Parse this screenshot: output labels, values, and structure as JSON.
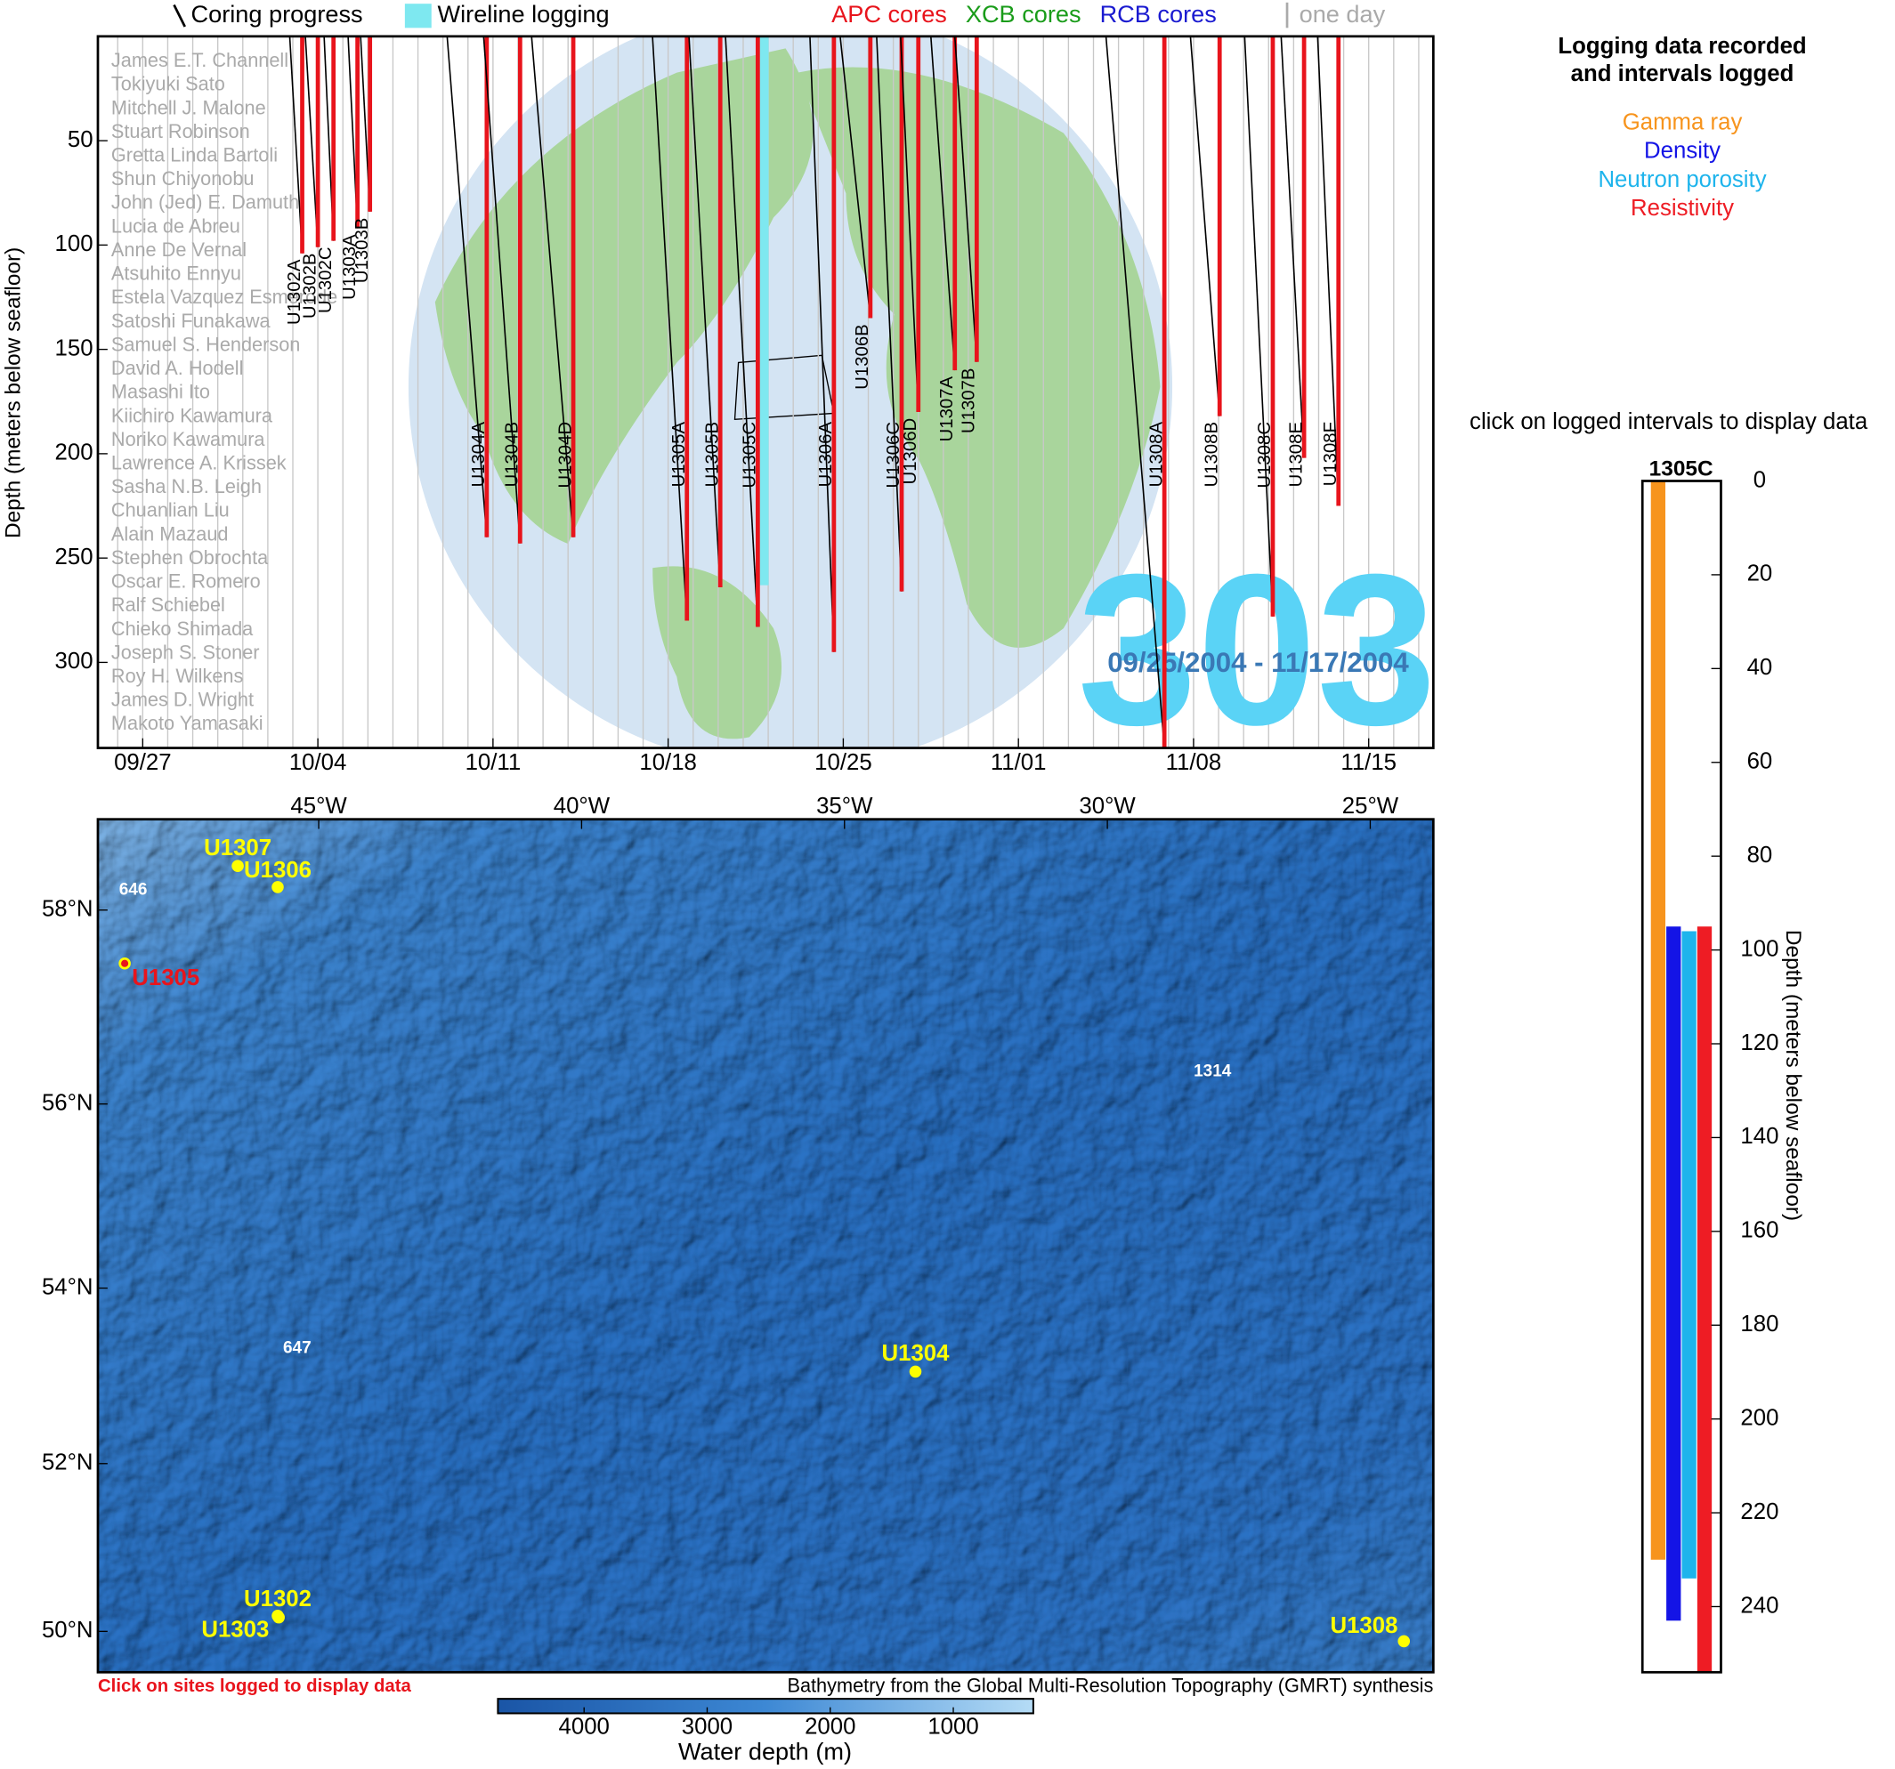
{
  "legend": {
    "coring": "Coring progress",
    "wireline": "Wireline logging",
    "core_types": [
      {
        "name": "APC cores",
        "color": "#e8141c"
      },
      {
        "name": "XCB cores",
        "color": "#1a9c1a"
      },
      {
        "name": "RCB cores",
        "color": "#1a1ad0"
      }
    ],
    "one_day": "one day"
  },
  "timeline": {
    "type": "timeline",
    "ylabel": "Depth (meters below seafloor)",
    "xlim": [
      "2004-09-25T05:00",
      "2004-11-17T14:00"
    ],
    "xticks": [
      {
        "value": "2004-09-27T00:00",
        "label": "09/27"
      },
      {
        "value": "2004-10-04T00:00",
        "label": "10/04"
      },
      {
        "value": "2004-10-11T00:00",
        "label": "10/11"
      },
      {
        "value": "2004-10-18T00:00",
        "label": "10/18"
      },
      {
        "value": "2004-10-25T00:00",
        "label": "10/25"
      },
      {
        "value": "2004-11-01T00:00",
        "label": "11/01"
      },
      {
        "value": "2004-11-08T00:00",
        "label": "11/08"
      },
      {
        "value": "2004-11-15T00:00",
        "label": "11/15"
      }
    ],
    "ylim": [
      0,
      341
    ],
    "yticks": [
      50,
      100,
      150,
      200,
      250,
      300
    ],
    "y_reversed": true,
    "expedition": "303",
    "date_range": "09/25/2004 - 11/17/2004",
    "crew": [
      "James E.T. Channell",
      "Tokiyuki Sato",
      "Mitchell J. Malone",
      "Stuart Robinson",
      "Gretta Linda Bartoli",
      "Shun Chiyonobu",
      "John (Jed) E. Damuth",
      "Lucia de Abreu",
      "Anne De Vernal",
      "Atsuhito Ennyu",
      "Estela Vazquez Esmerode",
      "Satoshi Funakawa",
      "Samuel S. Henderson",
      "David A. Hodell",
      "Masashi Ito",
      "Kiichiro Kawamura",
      "Noriko Kawamura",
      "Lawrence A. Krissek",
      "Sasha N.B. Leigh",
      "Chuanlian Liu",
      "Alain Mazaud",
      "Stephen Obrochta",
      "Oscar E. Romero",
      "Ralf Schiebel",
      "Chieko Shimada",
      "Joseph S. Stoner",
      "Roy H. Wilkens",
      "James D. Wright",
      "Makoto Yamasaki"
    ],
    "holes": [
      {
        "name": "U1302A",
        "start": "2004-10-02T21:00",
        "end": "2004-10-03T09:00",
        "depth": 104,
        "core": 0
      },
      {
        "name": "U1302B",
        "start": "2004-10-03T12:00",
        "end": "2004-10-04T00:00",
        "depth": 101,
        "core": 0
      },
      {
        "name": "U1302C",
        "start": "2004-10-04T06:00",
        "end": "2004-10-04T15:00",
        "depth": 98,
        "core": 0
      },
      {
        "name": "U1303A",
        "start": "2004-10-05T05:00",
        "end": "2004-10-05T14:00",
        "depth": 92,
        "core": 0
      },
      {
        "name": "U1303B",
        "start": "2004-10-05T17:00",
        "end": "2004-10-06T02:00",
        "depth": 84,
        "core": 0
      },
      {
        "name": "U1304A",
        "start": "2004-10-09T04:00",
        "end": "2004-10-10T18:00",
        "depth": 240,
        "core": 0
      },
      {
        "name": "U1304B",
        "start": "2004-10-10T15:00",
        "end": "2004-10-12T02:00",
        "depth": 243,
        "core": 0
      },
      {
        "name": "U1304D",
        "start": "2004-10-12T13:00",
        "end": "2004-10-14T05:00",
        "depth": 240,
        "core": 0
      },
      {
        "name": "U1305A",
        "start": "2004-10-17T09:00",
        "end": "2004-10-18T18:00",
        "depth": 280,
        "core": 0
      },
      {
        "name": "U1305B",
        "start": "2004-10-18T20:00",
        "end": "2004-10-20T02:00",
        "depth": 264,
        "core": 0
      },
      {
        "name": "U1305C",
        "start": "2004-10-20T07:00",
        "end": "2004-10-21T14:00",
        "depth": 283,
        "core": 0
      },
      {
        "name": "U1306A",
        "start": "2004-10-23T16:00",
        "end": "2004-10-24T15:00",
        "depth": 295,
        "core": 0
      },
      {
        "name": "U1306B",
        "start": "2004-10-24T21:00",
        "end": "2004-10-26T02:00",
        "depth": 135,
        "core": 0
      },
      {
        "name": "U1306C",
        "start": "2004-10-26T08:00",
        "end": "2004-10-27T08:00",
        "depth": 266,
        "core": 0
      },
      {
        "name": "U1306D",
        "start": "2004-10-27T07:00",
        "end": "2004-10-28T00:00",
        "depth": 180,
        "core": 0
      },
      {
        "name": "U1307A",
        "start": "2004-10-28T12:00",
        "end": "2004-10-29T11:00",
        "depth": 160,
        "core": 0
      },
      {
        "name": "U1307B",
        "start": "2004-10-29T11:00",
        "end": "2004-10-30T08:00",
        "depth": 156,
        "core": 0
      },
      {
        "name": "U1308A",
        "start": "2004-11-04T12:00",
        "end": "2004-11-06T20:00",
        "depth": 341,
        "core": 0
      },
      {
        "name": "U1308B",
        "start": "2004-11-07T21:00",
        "end": "2004-11-09T01:00",
        "depth": 182,
        "core": 0
      },
      {
        "name": "U1308C",
        "start": "2004-11-10T01:00",
        "end": "2004-11-11T04:00",
        "depth": 278,
        "core": 0
      },
      {
        "name": "U1308E",
        "start": "2004-11-11T12:00",
        "end": "2004-11-12T10:00",
        "depth": 202,
        "core": 0
      },
      {
        "name": "U1308F",
        "start": "2004-11-12T23:00",
        "end": "2004-11-13T19:00",
        "depth": 225,
        "core": 0
      }
    ],
    "logging": [
      {
        "hole": "U1305C",
        "top": 0,
        "bottom": 263,
        "color": "#7ee8f0"
      }
    ]
  },
  "logging_panel": {
    "title": [
      "Logging data recorded",
      "and intervals logged"
    ],
    "instruction": "click on logged intervals to display data",
    "hole": "1305C",
    "ylabel": "Depth (meters below seafloor)",
    "ylim": [
      0,
      254
    ],
    "yticks": [
      0,
      20,
      40,
      60,
      80,
      100,
      120,
      140,
      160,
      180,
      200,
      220,
      240
    ],
    "y_reversed": true,
    "series": [
      {
        "name": "Gamma ray",
        "color": "#f7941d",
        "top": 0,
        "bottom": 230
      },
      {
        "name": "Density",
        "color": "#1414e6",
        "top": 95,
        "bottom": 243
      },
      {
        "name": "Neutron porosity",
        "color": "#1eb4ec",
        "top": 96,
        "bottom": 234
      },
      {
        "name": "Resistivity",
        "color": "#ee1c24",
        "top": 95,
        "bottom": 254
      }
    ]
  },
  "map": {
    "type": "map",
    "projection": "mercator",
    "xlim": [
      -49.2,
      -23.8
    ],
    "ylim": [
      49.5,
      58.9
    ],
    "xticks": [
      {
        "value": -45,
        "label": "45°W"
      },
      {
        "value": -40,
        "label": "40°W"
      },
      {
        "value": -35,
        "label": "35°W"
      },
      {
        "value": -30,
        "label": "30°W"
      },
      {
        "value": -25,
        "label": "25°W"
      }
    ],
    "yticks": [
      {
        "value": 50,
        "label": "50°N"
      },
      {
        "value": 52,
        "label": "52°N"
      },
      {
        "value": 54,
        "label": "54°N"
      },
      {
        "value": 56,
        "label": "56°N"
      },
      {
        "value": 58,
        "label": "58°N"
      }
    ],
    "site_color": "#ffff00",
    "logged_color": "#e8141c",
    "sites": [
      {
        "name": "U1307",
        "lon": -46.54,
        "lat": 58.44,
        "logged": false
      },
      {
        "name": "U1306",
        "lon": -45.78,
        "lat": 58.23,
        "logged": false
      },
      {
        "name": "U1305",
        "lon": -48.69,
        "lat": 57.46,
        "logged": true
      },
      {
        "name": "U1304",
        "lon": -33.65,
        "lat": 53.06,
        "logged": false
      },
      {
        "name": "U1302",
        "lon": -45.78,
        "lat": 50.19,
        "logged": false
      },
      {
        "name": "U1303",
        "lon": -45.76,
        "lat": 50.17,
        "logged": false
      },
      {
        "name": "U1308",
        "lon": -24.36,
        "lat": 49.88,
        "logged": false
      }
    ],
    "odp_sites": [
      {
        "name": "646",
        "lon": -48.53,
        "lat": 58.2
      },
      {
        "name": "647",
        "lon": -45.41,
        "lat": 53.32
      },
      {
        "name": "1314",
        "lon": -28.0,
        "lat": 56.34
      }
    ],
    "note": "Click on sites logged to display data",
    "credit": "Bathymetry from the Global Multi-Resolution Topography (GMRT) synthesis",
    "colorbar": {
      "label": "Water depth (m)",
      "lim": [
        4700,
        350
      ],
      "ticks": [
        4000,
        3000,
        2000,
        1000
      ]
    }
  }
}
